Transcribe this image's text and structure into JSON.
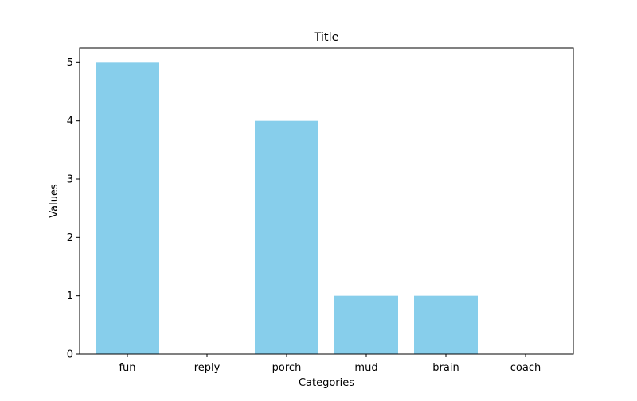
{
  "chart_data": {
    "type": "bar",
    "title": "Title",
    "xlabel": "Categories",
    "ylabel": "Values",
    "categories": [
      "fun",
      "reply",
      "porch",
      "mud",
      "brain",
      "coach"
    ],
    "values": [
      5,
      0,
      4,
      1,
      1,
      0
    ],
    "ylim": [
      0,
      5.25
    ],
    "yticks": [
      0,
      1,
      2,
      3,
      4,
      5
    ],
    "bar_color": "#87ceeb",
    "grid": false,
    "legend": "none"
  }
}
